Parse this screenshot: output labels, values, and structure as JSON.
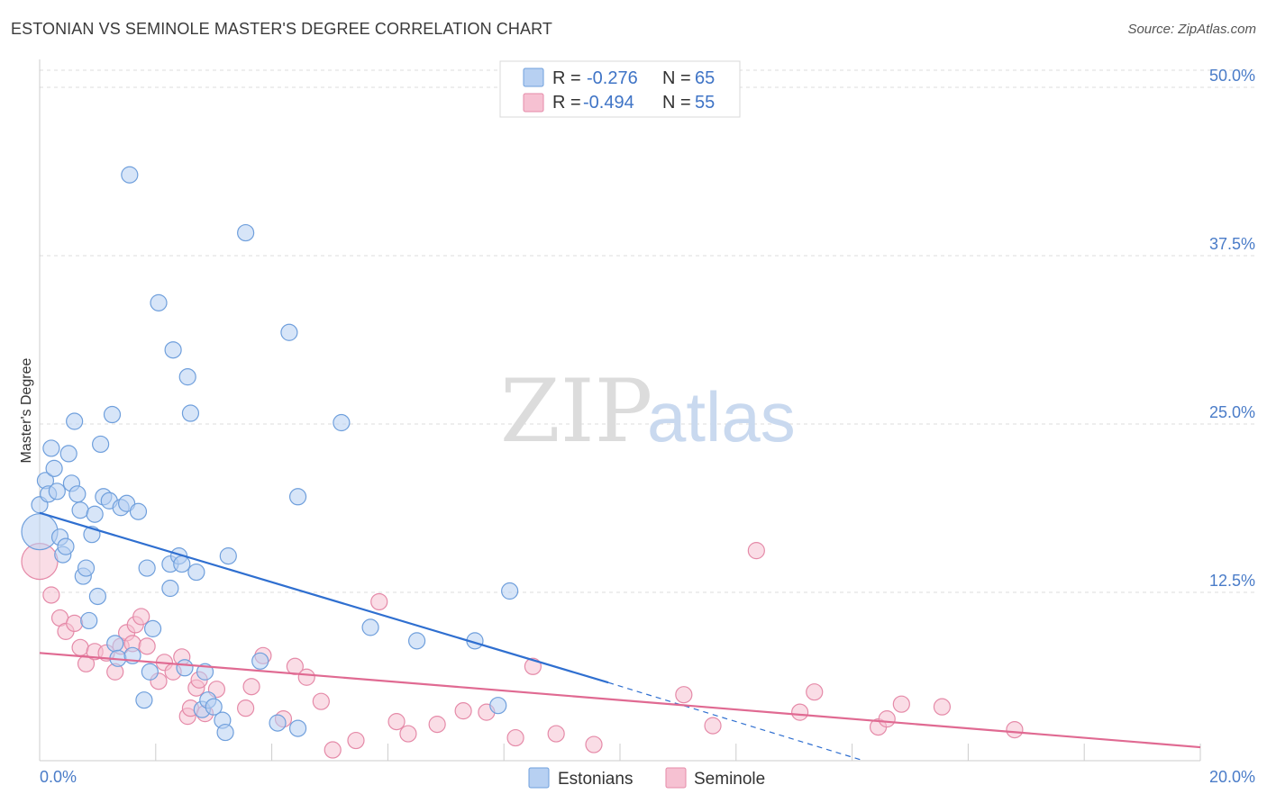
{
  "title": "ESTONIAN VS SEMINOLE MASTER'S DEGREE CORRELATION CHART",
  "source": "Source: ZipAtlas.com",
  "watermark": {
    "part1": "ZIP",
    "part2": "atlas"
  },
  "colors": {
    "estonians_fill": "#b7d0f2",
    "estonians_stroke": "#6f9fdc",
    "estonians_line": "#2f6fd0",
    "seminole_fill": "#f6c1d2",
    "seminole_stroke": "#e58aa8",
    "seminole_line": "#e06a92",
    "tick": "#4a7cc8",
    "grid": "#dddddd"
  },
  "legend": {
    "rows": [
      {
        "r_label": "R =",
        "r_value": "-0.276",
        "n_label": "N =",
        "n_value": "65"
      },
      {
        "r_label": "R =",
        "r_value": "-0.494",
        "n_label": "N =",
        "n_value": "55"
      }
    ],
    "bottom": [
      "Estonians",
      "Seminole"
    ]
  },
  "chart_data": {
    "type": "scatter",
    "title": "ESTONIAN VS SEMINOLE MASTER'S DEGREE CORRELATION CHART",
    "xlabel": "",
    "ylabel": "Master's Degree",
    "xlim": [
      0,
      20
    ],
    "ylim": [
      0,
      50
    ],
    "x_tick_labels": [
      "0.0%",
      "20.0%"
    ],
    "y_ticks": [
      {
        "value": 12.5,
        "label": "12.5%"
      },
      {
        "value": 25.0,
        "label": "25.0%"
      },
      {
        "value": 37.5,
        "label": "37.5%"
      },
      {
        "value": 50.0,
        "label": "50.0%"
      }
    ],
    "series": [
      {
        "name": "Estonians",
        "R": -0.276,
        "N": 65,
        "trend": {
          "x0": 0.0,
          "y0": 18.4,
          "x1": 9.8,
          "y1": 5.8,
          "dash_x1": 14.2,
          "dash_y1": 0.0
        },
        "points": [
          [
            0.0,
            17.0,
            "large"
          ],
          [
            0.0,
            19.0
          ],
          [
            0.1,
            20.8
          ],
          [
            0.15,
            19.8
          ],
          [
            0.2,
            23.2
          ],
          [
            0.25,
            21.7
          ],
          [
            0.3,
            20.0
          ],
          [
            0.35,
            16.6
          ],
          [
            0.4,
            15.3
          ],
          [
            0.45,
            15.9
          ],
          [
            0.5,
            22.8
          ],
          [
            0.55,
            20.6
          ],
          [
            0.6,
            25.2
          ],
          [
            0.65,
            19.8
          ],
          [
            0.7,
            18.6
          ],
          [
            0.75,
            13.7
          ],
          [
            0.8,
            14.3
          ],
          [
            0.85,
            10.4
          ],
          [
            0.9,
            16.8
          ],
          [
            0.95,
            18.3
          ],
          [
            1.0,
            12.2
          ],
          [
            1.05,
            23.5
          ],
          [
            1.1,
            19.6
          ],
          [
            1.2,
            19.3
          ],
          [
            1.25,
            25.7
          ],
          [
            1.3,
            8.7
          ],
          [
            1.35,
            7.6
          ],
          [
            1.4,
            18.8
          ],
          [
            1.5,
            19.1
          ],
          [
            1.55,
            43.5
          ],
          [
            1.6,
            7.8
          ],
          [
            1.7,
            18.5
          ],
          [
            1.8,
            4.5
          ],
          [
            1.85,
            14.3
          ],
          [
            1.9,
            6.6
          ],
          [
            1.95,
            9.8
          ],
          [
            2.05,
            34.0
          ],
          [
            2.25,
            14.6
          ],
          [
            2.4,
            15.2
          ],
          [
            2.45,
            14.6
          ],
          [
            2.55,
            28.5
          ],
          [
            2.3,
            30.5
          ],
          [
            2.5,
            6.9
          ],
          [
            2.6,
            25.8
          ],
          [
            2.7,
            14.0
          ],
          [
            2.8,
            3.8
          ],
          [
            2.85,
            6.6
          ],
          [
            2.9,
            4.5
          ],
          [
            2.25,
            12.8
          ],
          [
            3.0,
            4.0
          ],
          [
            3.15,
            3.0
          ],
          [
            3.2,
            2.1
          ],
          [
            3.25,
            15.2
          ],
          [
            3.55,
            39.2
          ],
          [
            3.8,
            7.4
          ],
          [
            4.1,
            2.8
          ],
          [
            4.3,
            31.8
          ],
          [
            4.45,
            2.4
          ],
          [
            4.45,
            19.6
          ],
          [
            5.2,
            25.1
          ],
          [
            5.7,
            9.9
          ],
          [
            6.5,
            8.9
          ],
          [
            7.5,
            8.9
          ],
          [
            7.9,
            4.1
          ],
          [
            8.1,
            12.6
          ]
        ]
      },
      {
        "name": "Seminole",
        "R": -0.494,
        "N": 55,
        "trend": {
          "x0": 0.0,
          "y0": 8.0,
          "x1": 20.0,
          "y1": 1.0
        },
        "points": [
          [
            0.0,
            14.8,
            "large"
          ],
          [
            0.2,
            12.3
          ],
          [
            0.35,
            10.6
          ],
          [
            0.45,
            9.6
          ],
          [
            0.6,
            10.2
          ],
          [
            0.7,
            8.4
          ],
          [
            0.8,
            7.2
          ],
          [
            0.95,
            8.1
          ],
          [
            1.15,
            8.0
          ],
          [
            1.3,
            6.6
          ],
          [
            1.4,
            8.5
          ],
          [
            1.5,
            9.5
          ],
          [
            1.6,
            8.7
          ],
          [
            1.65,
            10.1
          ],
          [
            1.75,
            10.7
          ],
          [
            1.85,
            8.5
          ],
          [
            2.05,
            5.9
          ],
          [
            2.15,
            7.3
          ],
          [
            2.3,
            6.6
          ],
          [
            2.45,
            7.7
          ],
          [
            2.55,
            3.3
          ],
          [
            2.6,
            3.9
          ],
          [
            2.7,
            5.4
          ],
          [
            2.75,
            6.0
          ],
          [
            2.85,
            3.5
          ],
          [
            3.05,
            5.3
          ],
          [
            3.55,
            3.9
          ],
          [
            3.65,
            5.5
          ],
          [
            3.85,
            7.8
          ],
          [
            4.2,
            3.1
          ],
          [
            4.4,
            7.0
          ],
          [
            4.6,
            6.2
          ],
          [
            4.85,
            4.4
          ],
          [
            5.05,
            0.8
          ],
          [
            5.45,
            1.5
          ],
          [
            5.85,
            11.8
          ],
          [
            6.15,
            2.9
          ],
          [
            6.35,
            2.0
          ],
          [
            6.85,
            2.7
          ],
          [
            7.3,
            3.7
          ],
          [
            7.7,
            3.6
          ],
          [
            8.2,
            1.7
          ],
          [
            8.5,
            7.0
          ],
          [
            8.9,
            2.0
          ],
          [
            9.55,
            1.2
          ],
          [
            11.1,
            4.9
          ],
          [
            11.6,
            2.6
          ],
          [
            12.35,
            15.6
          ],
          [
            13.1,
            3.6
          ],
          [
            13.35,
            5.1
          ],
          [
            14.45,
            2.5
          ],
          [
            14.6,
            3.1
          ],
          [
            14.85,
            4.2
          ],
          [
            15.55,
            4.0
          ],
          [
            16.8,
            2.3
          ]
        ]
      }
    ]
  }
}
